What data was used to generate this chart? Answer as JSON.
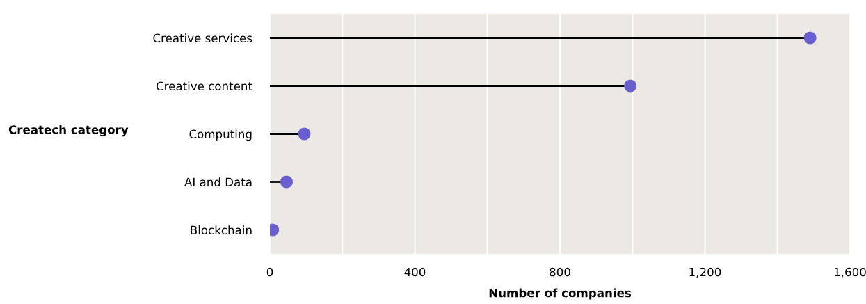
{
  "chart_data": {
    "type": "lollipop",
    "orientation": "horizontal",
    "xlabel": "Number of companies",
    "ylabel": "Createch category",
    "categories": [
      "Creative services",
      "Creative content",
      "Computing",
      "AI and Data",
      "Blockchain"
    ],
    "values": [
      1490,
      994,
      95,
      46,
      8
    ],
    "color": "#6a5fcf",
    "xlim": [
      0,
      1600
    ],
    "xticks": [
      0,
      {
        "value": 200,
        "label": null
      },
      400,
      {
        "value": 600,
        "label": null
      },
      {
        "value": 800,
        "label": "800"
      },
      {
        "value": 1000,
        "label": null
      },
      {
        "value": 1200,
        "label": "1,200"
      },
      {
        "value": 1400,
        "label": null
      },
      {
        "value": 1600,
        "label": "1,600"
      }
    ],
    "grid": "x",
    "marker": "circle"
  }
}
